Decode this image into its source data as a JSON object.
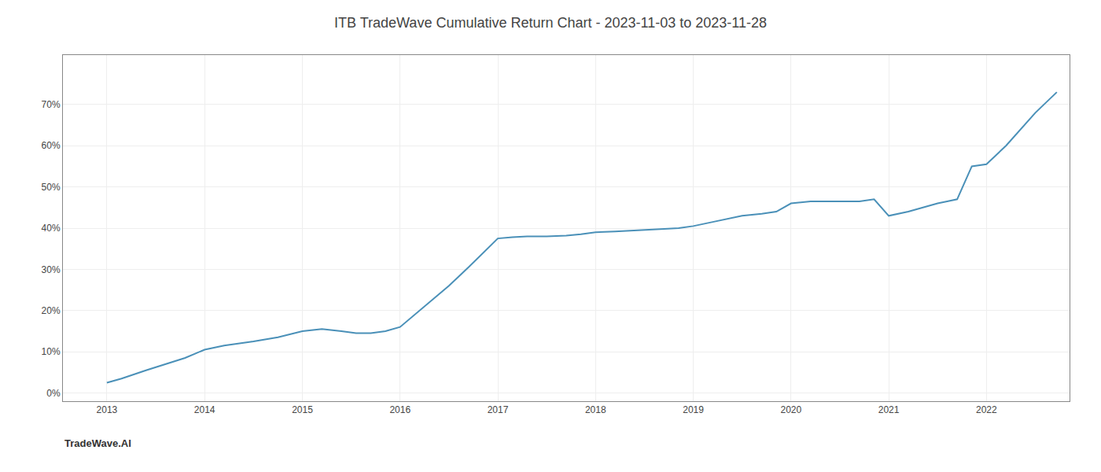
{
  "chart_data": {
    "type": "line",
    "title": "ITB TradeWave Cumulative Return Chart - 2023-11-03 to 2023-11-28",
    "annotations": [
      "TradeWave.AI"
    ],
    "x": [
      2013.0,
      2013.15,
      2013.4,
      2013.6,
      2013.8,
      2014.0,
      2014.2,
      2014.5,
      2014.75,
      2015.0,
      2015.2,
      2015.4,
      2015.55,
      2015.7,
      2015.85,
      2016.0,
      2016.15,
      2016.3,
      2016.5,
      2016.7,
      2016.85,
      2017.0,
      2017.15,
      2017.3,
      2017.5,
      2017.7,
      2017.85,
      2018.0,
      2018.2,
      2018.5,
      2018.7,
      2018.85,
      2019.0,
      2019.2,
      2019.5,
      2019.7,
      2019.85,
      2020.0,
      2020.2,
      2020.5,
      2020.7,
      2020.85,
      2021.0,
      2021.2,
      2021.5,
      2021.7,
      2021.85,
      2022.0,
      2022.2,
      2022.5,
      2022.72
    ],
    "values": [
      2.5,
      3.5,
      5.5,
      7.0,
      8.5,
      10.5,
      11.5,
      12.5,
      13.5,
      15.0,
      15.5,
      15.0,
      14.5,
      14.5,
      15.0,
      16.0,
      19.0,
      22.0,
      26.0,
      30.5,
      34.0,
      37.5,
      37.8,
      38.0,
      38.0,
      38.2,
      38.5,
      39.0,
      39.2,
      39.5,
      39.8,
      40.0,
      40.5,
      41.5,
      43.0,
      43.5,
      44.0,
      46.0,
      46.5,
      46.5,
      46.5,
      47.0,
      43.0,
      44.0,
      46.0,
      47.0,
      55.0,
      55.5,
      60.0,
      68.0,
      73.0
    ],
    "color": "#4a90b8",
    "xlim": [
      2012.55,
      2022.85
    ],
    "xticks": [
      2013,
      2014,
      2015,
      2016,
      2017,
      2018,
      2019,
      2020,
      2021,
      2022
    ],
    "ylim": [
      -2,
      82
    ],
    "yticks": [
      {
        "value": 0,
        "label": "0%"
      },
      {
        "value": 10,
        "label": "10%"
      },
      {
        "value": 20,
        "label": "20%"
      },
      {
        "value": 30,
        "label": "30%"
      },
      {
        "value": 40,
        "label": "40%"
      },
      {
        "value": 50,
        "label": "50%"
      },
      {
        "value": 60,
        "label": "60%"
      },
      {
        "value": 70,
        "label": "70%"
      }
    ],
    "grid": true
  }
}
